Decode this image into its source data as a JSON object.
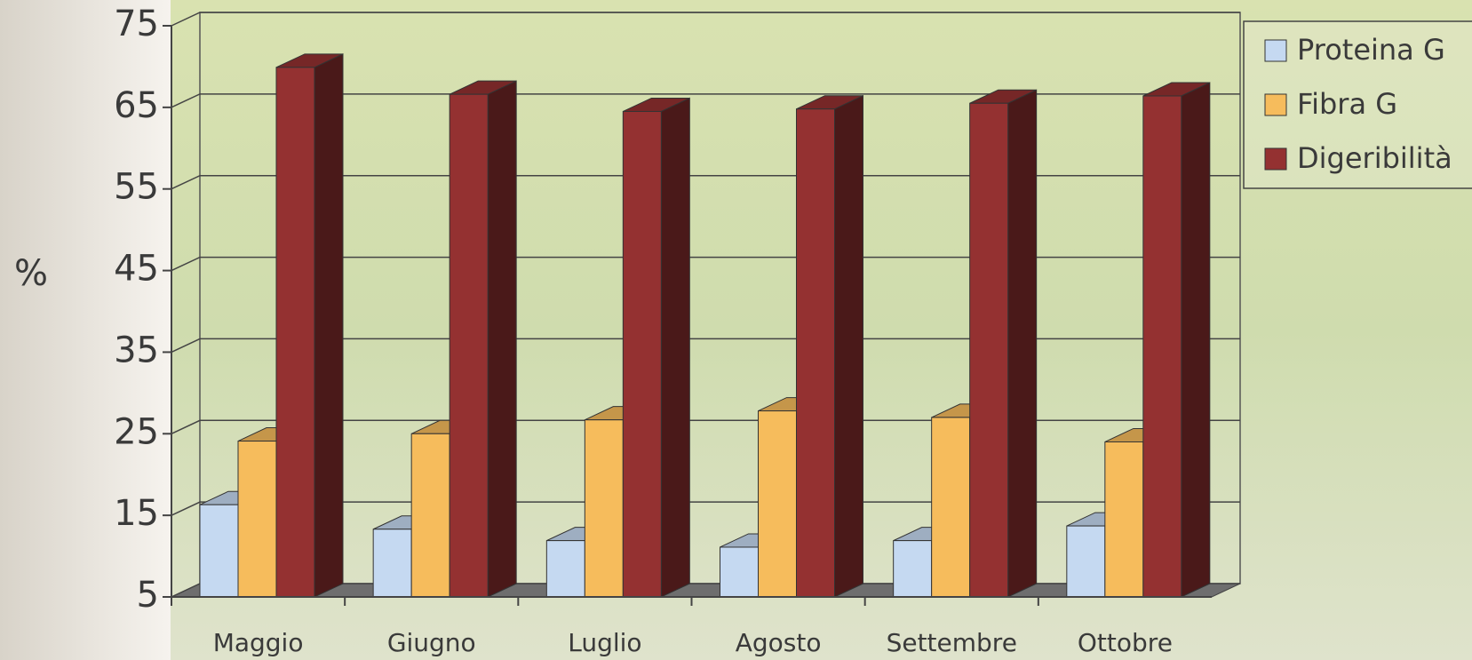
{
  "chart_data": {
    "type": "bar3d",
    "y_label": "%",
    "categories": [
      "Maggio",
      "Giugno",
      "Luglio",
      "Agosto",
      "Settembre",
      "Ottobre"
    ],
    "series": [
      {
        "name": "Proteina G",
        "color": "#c5d9f1",
        "values": [
          16.3,
          13.3,
          11.9,
          11.1,
          11.9,
          13.7
        ]
      },
      {
        "name": "Fibra G",
        "color": "#f6bc5c",
        "values": [
          24.1,
          25,
          26.7,
          27.8,
          27,
          24
        ]
      },
      {
        "name": "Digeribilità",
        "color": "#943131",
        "values": [
          69.9,
          66.6,
          64.5,
          64.8,
          65.5,
          66.4
        ]
      }
    ],
    "ylim": [
      5,
      75
    ],
    "yticks": [
      5,
      15,
      25,
      35,
      45,
      55,
      65,
      75
    ],
    "grid": true,
    "legend": "top-right"
  }
}
